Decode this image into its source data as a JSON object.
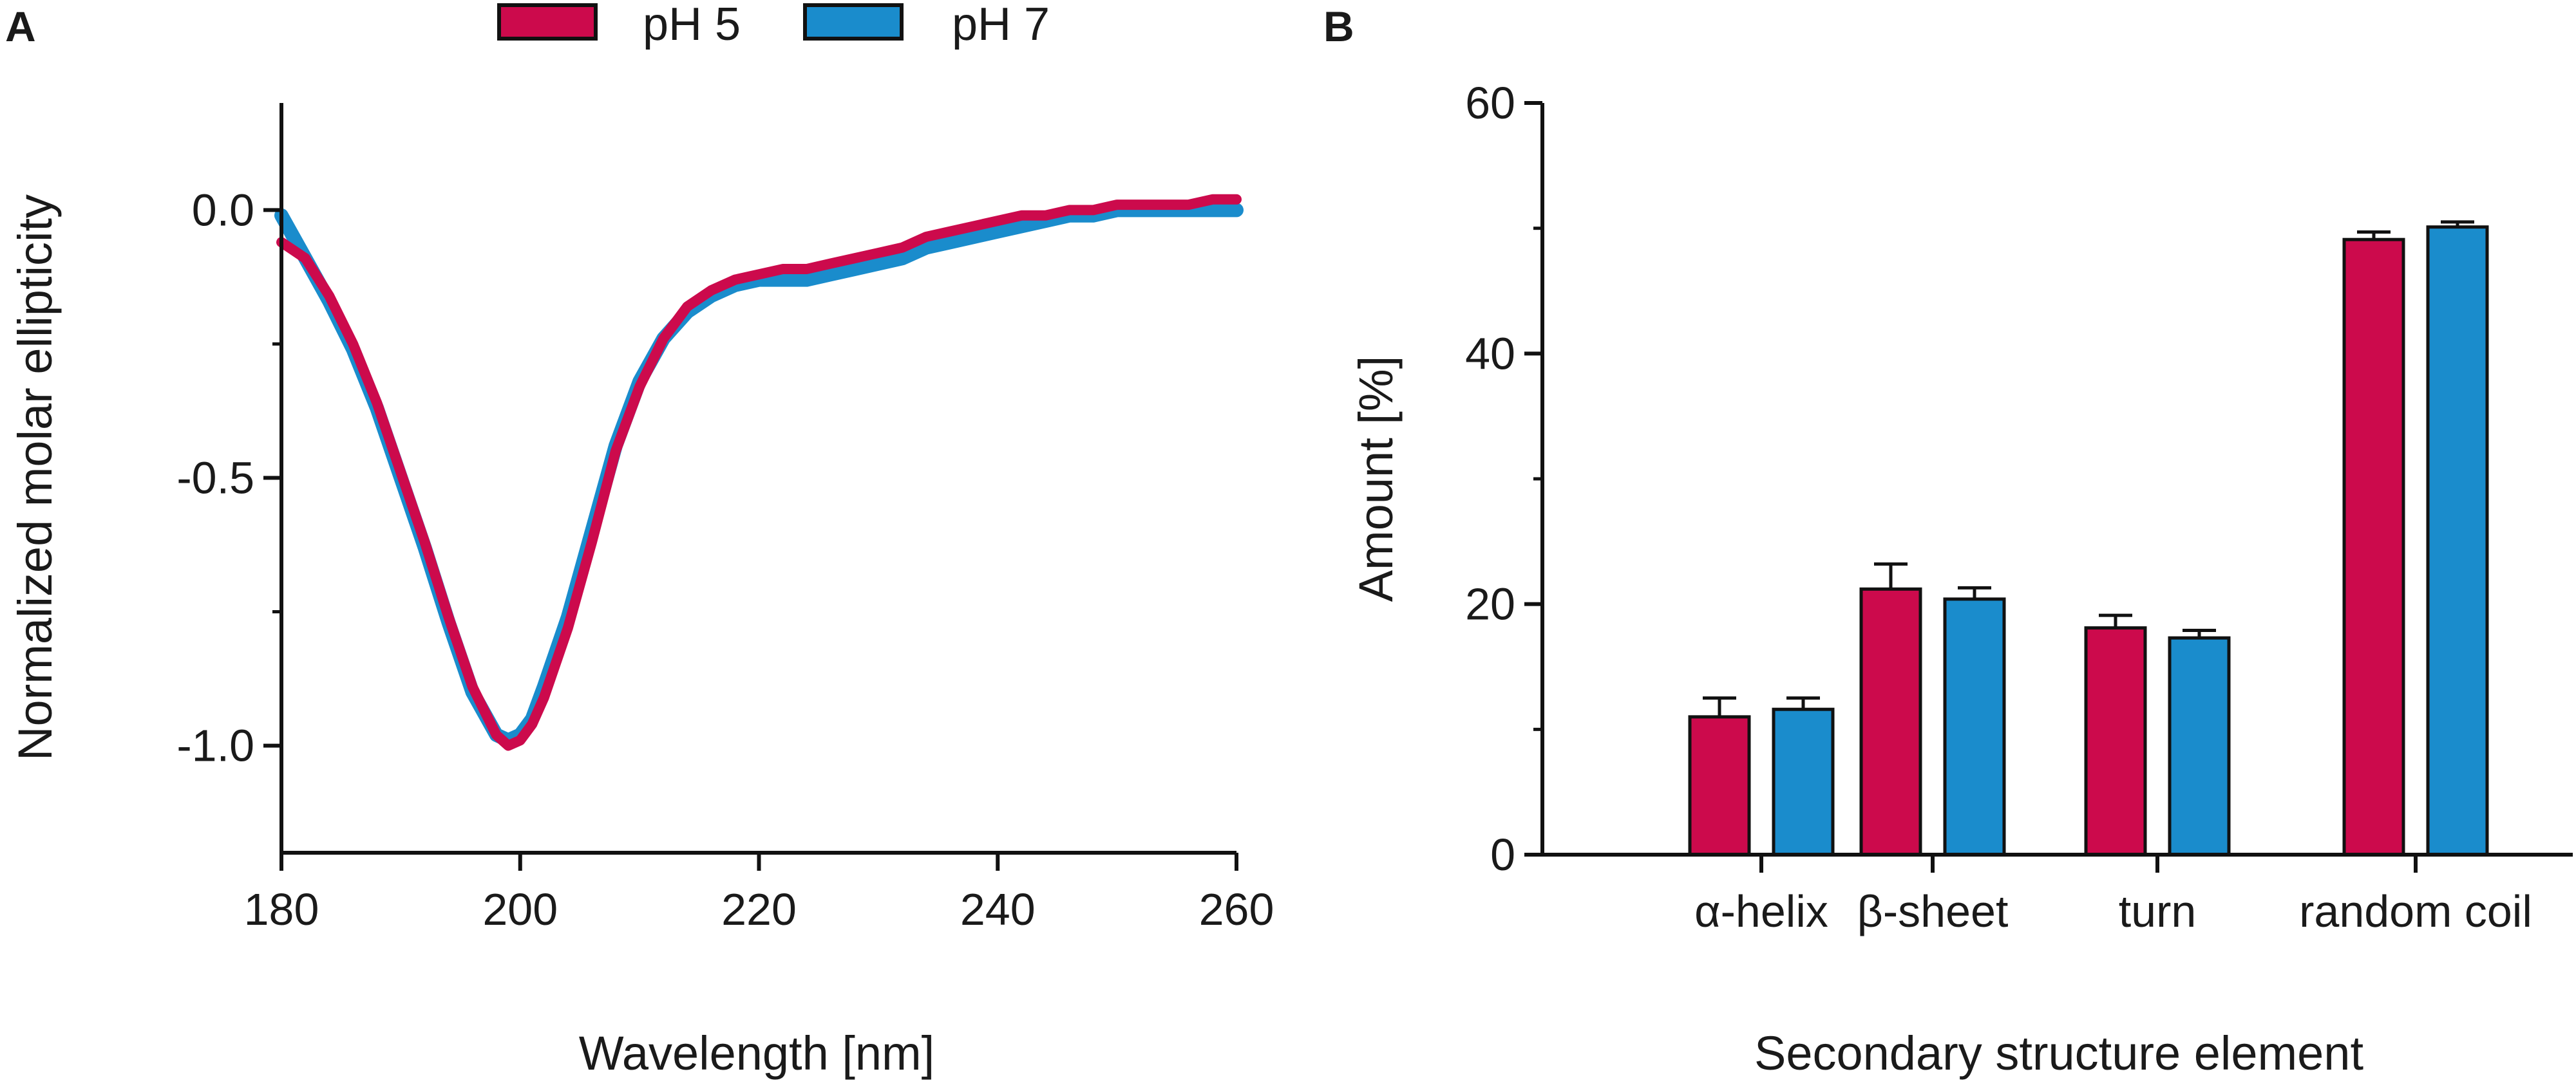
{
  "colors": {
    "ph5": "#cc0a4c",
    "ph7": "#1a8ccc",
    "axis": "#111111"
  },
  "legend": [
    {
      "label": "pH 5",
      "color": "#cc0a4c"
    },
    {
      "label": "pH 7",
      "color": "#1a8ccc"
    }
  ],
  "chart_data": [
    {
      "panel": "A",
      "type": "line",
      "title": "",
      "xlabel": "Wavelength [nm]",
      "ylabel": "Normalized molar ellipticity",
      "xlim": [
        180,
        260
      ],
      "ylim": [
        -1.2,
        0.2
      ],
      "xticks": [
        180,
        200,
        220,
        240,
        260
      ],
      "yticks": [
        0.0,
        -0.5,
        -1.0
      ],
      "ytick_labels": [
        "0.0",
        "-0.5",
        "-1.0"
      ],
      "grid": false,
      "series": [
        {
          "name": "pH 5",
          "x": [
            180,
            182,
            184,
            186,
            188,
            190,
            192,
            194,
            196,
            198,
            199,
            200,
            201,
            202,
            204,
            206,
            208,
            210,
            212,
            214,
            216,
            218,
            220,
            222,
            224,
            226,
            228,
            230,
            232,
            234,
            236,
            238,
            240,
            242,
            244,
            246,
            248,
            250,
            252,
            254,
            256,
            258,
            260
          ],
          "y": [
            -0.06,
            -0.09,
            -0.16,
            -0.25,
            -0.36,
            -0.49,
            -0.62,
            -0.76,
            -0.89,
            -0.98,
            -1.0,
            -0.99,
            -0.96,
            -0.91,
            -0.78,
            -0.62,
            -0.45,
            -0.33,
            -0.24,
            -0.18,
            -0.15,
            -0.13,
            -0.12,
            -0.11,
            -0.11,
            -0.1,
            -0.09,
            -0.08,
            -0.07,
            -0.05,
            -0.04,
            -0.03,
            -0.02,
            -0.01,
            -0.01,
            0.0,
            0.0,
            0.01,
            0.01,
            0.01,
            0.01,
            0.02,
            0.02
          ]
        },
        {
          "name": "pH 7",
          "x": [
            180,
            182,
            184,
            186,
            188,
            190,
            192,
            194,
            196,
            198,
            199,
            200,
            201,
            202,
            204,
            206,
            208,
            210,
            212,
            214,
            216,
            218,
            220,
            222,
            224,
            226,
            228,
            230,
            232,
            234,
            236,
            238,
            240,
            242,
            244,
            246,
            248,
            250,
            252,
            254,
            256,
            258,
            260
          ],
          "y": [
            -0.01,
            -0.09,
            -0.17,
            -0.26,
            -0.37,
            -0.5,
            -0.63,
            -0.77,
            -0.9,
            -0.98,
            -0.99,
            -0.98,
            -0.95,
            -0.89,
            -0.76,
            -0.6,
            -0.44,
            -0.32,
            -0.24,
            -0.19,
            -0.16,
            -0.14,
            -0.13,
            -0.13,
            -0.13,
            -0.12,
            -0.11,
            -0.1,
            -0.09,
            -0.07,
            -0.06,
            -0.05,
            -0.04,
            -0.03,
            -0.02,
            -0.01,
            -0.01,
            0.0,
            0.0,
            0.0,
            0.0,
            0.0,
            0.0
          ]
        }
      ]
    },
    {
      "panel": "B",
      "type": "bar",
      "title": "",
      "xlabel": "Secondary structure element",
      "ylabel": "Amount [%]",
      "ylim": [
        0,
        60
      ],
      "yticks": [
        0,
        20,
        40,
        60
      ],
      "categories": [
        "α-helix",
        "β-sheet",
        "turn",
        "random coil"
      ],
      "grid": false,
      "series": [
        {
          "name": "pH 5",
          "values": [
            11.0,
            21.2,
            18.1,
            49.1
          ],
          "errors": [
            1.5,
            2.0,
            1.0,
            0.6
          ]
        },
        {
          "name": "pH 7",
          "values": [
            11.6,
            20.4,
            17.3,
            50.1
          ],
          "errors": [
            0.9,
            0.9,
            0.6,
            0.4
          ]
        }
      ]
    }
  ]
}
